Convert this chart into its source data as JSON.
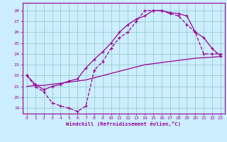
{
  "bg_color": "#cceeff",
  "grid_color": "#99cccc",
  "line_color": "#990099",
  "spine_color": "#990099",
  "xlim": [
    -0.5,
    23.5
  ],
  "ylim": [
    18.5,
    28.7
  ],
  "yticks": [
    19,
    20,
    21,
    22,
    23,
    24,
    25,
    26,
    27,
    28
  ],
  "xticks": [
    0,
    1,
    2,
    3,
    4,
    5,
    6,
    7,
    8,
    9,
    10,
    11,
    12,
    13,
    14,
    15,
    16,
    17,
    18,
    19,
    20,
    21,
    22,
    23
  ],
  "xlabel": "Windchill (Refroidissement éolien,°C)",
  "series1_x": [
    0,
    1,
    2,
    3,
    4,
    5,
    6,
    7,
    8,
    9,
    10,
    11,
    12,
    13,
    14,
    15,
    16,
    17,
    18,
    19,
    20,
    21,
    22,
    23
  ],
  "series1_y": [
    22,
    21,
    20.5,
    19.5,
    19.2,
    19.0,
    18.7,
    19.2,
    22.5,
    23.3,
    24.5,
    25.5,
    26.0,
    27.0,
    28.0,
    28.0,
    28.0,
    27.7,
    27.5,
    26.7,
    26.0,
    24.0,
    24.0,
    24.0
  ],
  "series2_x": [
    0,
    1,
    2,
    3,
    4,
    5,
    6,
    7,
    8,
    9,
    10,
    11,
    12,
    13,
    14,
    15,
    16,
    17,
    18,
    19,
    20,
    21,
    22,
    23
  ],
  "series2_y": [
    22.0,
    21.2,
    20.7,
    21.0,
    21.2,
    21.5,
    21.7,
    22.7,
    23.5,
    24.2,
    25.0,
    26.0,
    26.7,
    27.2,
    27.5,
    28.0,
    28.0,
    27.8,
    27.7,
    27.5,
    26.0,
    25.5,
    24.5,
    23.8
  ],
  "series3_x": [
    0,
    1,
    2,
    3,
    4,
    5,
    6,
    7,
    8,
    9,
    10,
    11,
    12,
    13,
    14,
    15,
    16,
    17,
    18,
    19,
    20,
    21,
    22,
    23
  ],
  "series3_y": [
    21.0,
    21.1,
    21.1,
    21.2,
    21.3,
    21.4,
    21.5,
    21.6,
    21.8,
    22.0,
    22.2,
    22.4,
    22.6,
    22.8,
    23.0,
    23.1,
    23.2,
    23.3,
    23.4,
    23.5,
    23.6,
    23.65,
    23.7,
    23.75
  ]
}
